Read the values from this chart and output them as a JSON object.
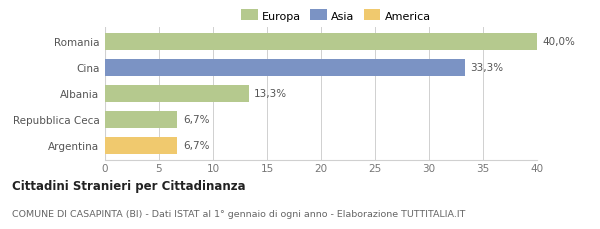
{
  "categories": [
    "Romania",
    "Cina",
    "Albania",
    "Repubblica Ceca",
    "Argentina"
  ],
  "values": [
    40.0,
    33.3,
    13.3,
    6.7,
    6.7
  ],
  "labels": [
    "40,0%",
    "33,3%",
    "13,3%",
    "6,7%",
    "6,7%"
  ],
  "colors": [
    "#b5c98e",
    "#7b93c4",
    "#b5c98e",
    "#b5c98e",
    "#f0c96e"
  ],
  "legend_items": [
    {
      "label": "Europa",
      "color": "#b5c98e"
    },
    {
      "label": "Asia",
      "color": "#7b93c4"
    },
    {
      "label": "America",
      "color": "#f0c96e"
    }
  ],
  "xlim": [
    0,
    40
  ],
  "xticks": [
    0,
    5,
    10,
    15,
    20,
    25,
    30,
    35,
    40
  ],
  "title_bold": "Cittadini Stranieri per Cittadinanza",
  "subtitle": "COMUNE DI CASAPINTA (BI) - Dati ISTAT al 1° gennaio di ogni anno - Elaborazione TUTTITALIA.IT",
  "background_color": "#ffffff",
  "grid_color": "#d0d0d0"
}
